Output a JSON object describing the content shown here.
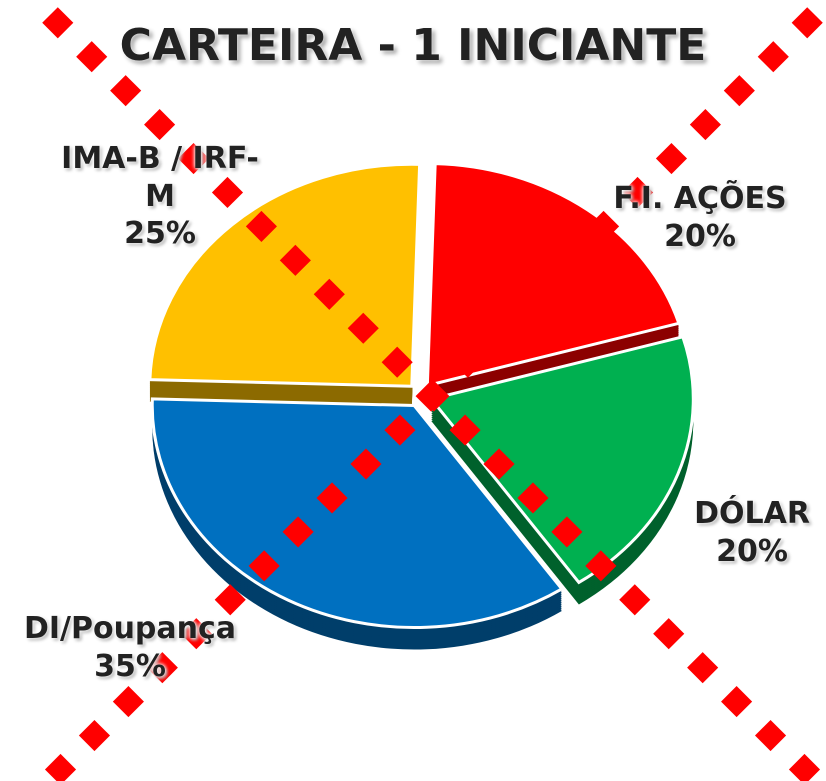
{
  "chart_data": {
    "type": "pie",
    "title": "CARTEIRA - 1 INICIANTE",
    "categories": [
      "F.I. AÇÕES",
      "DÓLAR",
      "DI/Poupança",
      "IMA-B / IRF-M"
    ],
    "values": [
      20,
      20,
      35,
      25
    ],
    "value_labels": [
      "20%",
      "20%",
      "35%",
      "25%"
    ],
    "colors": [
      "#ff0000",
      "#00b050",
      "#0070c0",
      "#ffc000"
    ]
  }
}
